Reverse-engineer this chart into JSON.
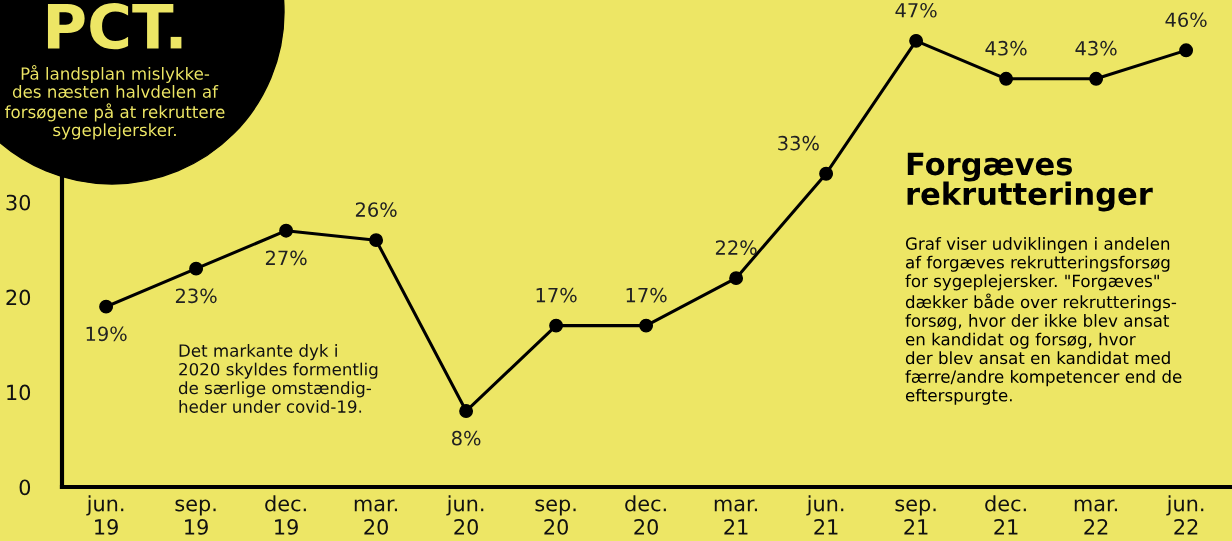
{
  "chart_data": {
    "type": "line",
    "title": "Forgæves\nrekrutteringer",
    "subtitle": "Graf viser udviklingen i andelen\naf forgæves rekrutteringsforsøg\nfor sygeplejersker. \"Forgæves\"\ndækker både over rekrutterings-\nforsøg, hvor der ikke blev ansat\nen kandidat og forsøg, hvor\nder blev ansat en kandidat med\nfærre/andre kompetencer end de\nefterspurgte.",
    "annotations": [
      "PCT.",
      "På landsplan mislykke-\ndes næsten halvdelen af\nforsøgene på at rekruttere\nsygeplejersker.",
      "Det markante dyk i\n2020 skyldes formentlig\nde særlige omstændig-\nheder under covid-19."
    ],
    "categories": [
      "jun.\n19",
      "sep.\n19",
      "dec.\n19",
      "mar.\n20",
      "jun.\n20",
      "sep.\n20",
      "dec.\n20",
      "mar.\n21",
      "jun.\n21",
      "sep.\n21",
      "dec.\n21",
      "mar.\n22",
      "jun.\n22"
    ],
    "series": [
      {
        "color": "#000000",
        "values": [
          19,
          23,
          27,
          26,
          8,
          17,
          17,
          22,
          33,
          47,
          43,
          43,
          46
        ],
        "value_labels": [
          "19%",
          "23%",
          "27%",
          "26%",
          "8%",
          "17%",
          "17%",
          "22%",
          "33%",
          "47%",
          "43%",
          "43%",
          "46%"
        ]
      }
    ],
    "ylim": [
      0,
      51.3
    ],
    "yticks": [
      0,
      10,
      20,
      30
    ],
    "grid": false,
    "legend": false,
    "marker": "circle",
    "line_style": "solid"
  }
}
